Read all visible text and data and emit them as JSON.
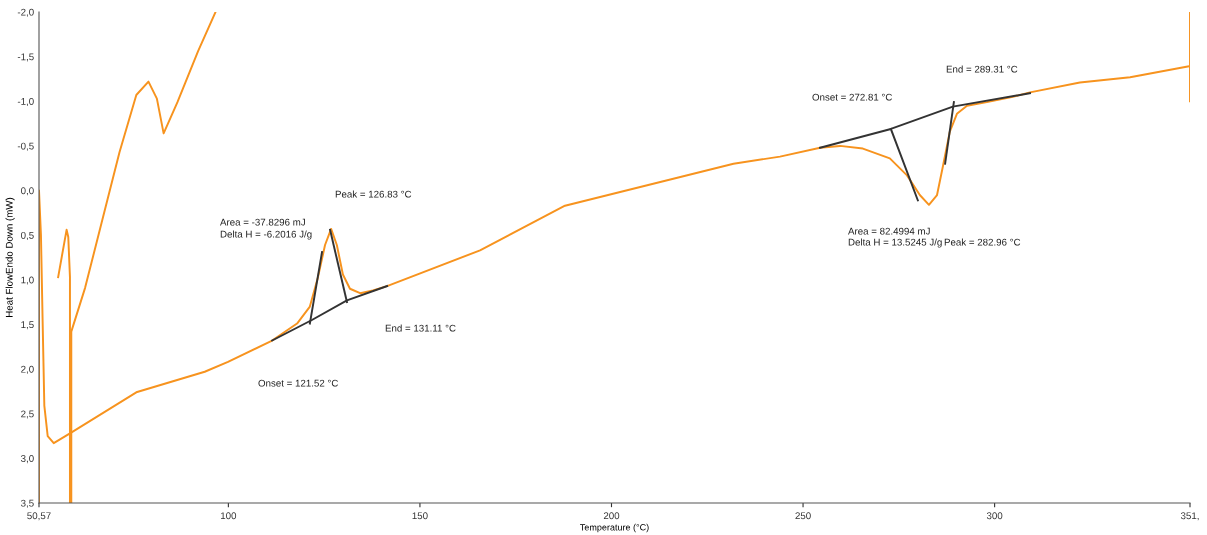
{
  "chart_data": {
    "type": "line",
    "xlabel": "Temperature (°C)",
    "ylabel": "Heat FlowEndo Down (mW)",
    "xlim": [
      50.57,
      351
    ],
    "xticks": [
      {
        "value": 50.57,
        "label": "50,57"
      },
      100,
      150,
      200,
      250,
      300,
      {
        "value": 351,
        "label": "351,"
      }
    ],
    "ylim": [
      3.5,
      -2.0
    ],
    "yticks": [
      {
        "value": -2.0,
        "label": "-2,0"
      },
      {
        "value": -1.5,
        "label": "-1,5"
      },
      {
        "value": -1.0,
        "label": "-1,0"
      },
      {
        "value": -0.5,
        "label": "-0,5"
      },
      {
        "value": 0.0,
        "label": "0,0"
      },
      {
        "value": 0.5,
        "label": "0,5"
      },
      {
        "value": 1.0,
        "label": "1,0"
      },
      {
        "value": 1.5,
        "label": "1,5"
      },
      {
        "value": 2.0,
        "label": "2,0"
      },
      {
        "value": 2.5,
        "label": "2,5"
      },
      {
        "value": 3.0,
        "label": "3,0"
      },
      {
        "value": 3.5,
        "label": "3,5"
      }
    ],
    "grid": false,
    "marker": "none",
    "line_style": "solid",
    "series": [
      {
        "color": "#f7931e",
        "x": [
          50.57,
          50.57,
          51.08,
          51.52,
          51.96,
          52.84,
          54.42,
          58.65,
          75.97,
          93.83,
          99.9,
          111.42,
          117.93,
          121.27,
          123.39,
          125.23,
          126.82,
          128.31,
          129.89,
          131.74,
          134.38,
          137.72,
          141.42,
          165.69,
          187.86,
          231.84,
          243.98,
          254.45,
          259.64,
          265.62,
          272.65,
          277.14,
          280.48,
          282.86,
          284.97,
          286.55,
          288.31,
          290.16,
          292.8,
          297.99,
          304.76,
          309.24,
          322.26,
          335.37,
          350.5
        ],
        "values": [
          3.5,
          0.0,
          0.5,
          1.47,
          2.41,
          2.75,
          2.83,
          2.72,
          2.26,
          2.03,
          1.92,
          1.68,
          1.49,
          1.3,
          0.97,
          0.61,
          0.43,
          0.61,
          0.94,
          1.1,
          1.15,
          1.12,
          1.07,
          0.67,
          0.17,
          -0.3,
          -0.38,
          -0.48,
          -0.5,
          -0.47,
          -0.36,
          -0.17,
          0.05,
          0.16,
          0.05,
          -0.28,
          -0.66,
          -0.86,
          -0.95,
          -0.99,
          -1.05,
          -1.1,
          -1.21,
          -1.27,
          -1.39
        ]
      },
      {
        "color": "#f7931e",
        "x": [
          351,
          351
        ],
        "values": [
          -2.0,
          -1.0
        ]
      },
      {
        "color": "#f7931e",
        "x": [
          55.57,
          57.77,
          58.21,
          58.65,
          58.65
        ],
        "values": [
          0.97,
          0.44,
          0.52,
          0.97,
          3.5
        ]
      },
      {
        "color": "#f7931e",
        "x": [
          59.0,
          59.0,
          62.6,
          67.09,
          71.58,
          75.97,
          79.14,
          81.34,
          83.1,
          86.71,
          92.07,
          96.65
        ],
        "values": [
          3.5,
          1.58,
          1.09,
          0.33,
          -0.43,
          -1.07,
          -1.22,
          -1.03,
          -0.64,
          -0.99,
          -1.56,
          -2.0
        ]
      },
      {
        "color": "#333333",
        "x": [
          111.42,
          121.8,
          130.95,
          141.42
        ],
        "values": [
          1.68,
          1.45,
          1.23,
          1.07
        ]
      },
      {
        "color": "#333333",
        "x": [
          121.27,
          124.44
        ],
        "values": [
          1.49,
          0.69
        ]
      },
      {
        "color": "#333333",
        "x": [
          126.55,
          130.95
        ],
        "values": [
          0.44,
          1.25
        ]
      },
      {
        "color": "#333333",
        "x": [
          254.45,
          272.92,
          289.1,
          309.24
        ],
        "values": [
          -0.48,
          -0.69,
          -0.94,
          -1.09
        ]
      },
      {
        "color": "#333333",
        "x": [
          272.92,
          279.96
        ],
        "values": [
          -0.69,
          0.11
        ]
      },
      {
        "color": "#333333",
        "x": [
          287.08,
          289.37
        ],
        "values": [
          -0.3,
          -0.99
        ]
      }
    ],
    "annotations": [
      "Peak = 126.83 °C",
      "Area = -37.8296 mJ",
      "Delta H = -6.2016 J/g",
      "End = 131.11 °C",
      "Onset = 121.52 °C",
      "Onset = 272.81 °C",
      "End = 289.31 °C",
      "Area = 82.4994 mJ",
      "Delta H = 13.5245 J/g",
      "Peak = 282.96 °C"
    ]
  }
}
